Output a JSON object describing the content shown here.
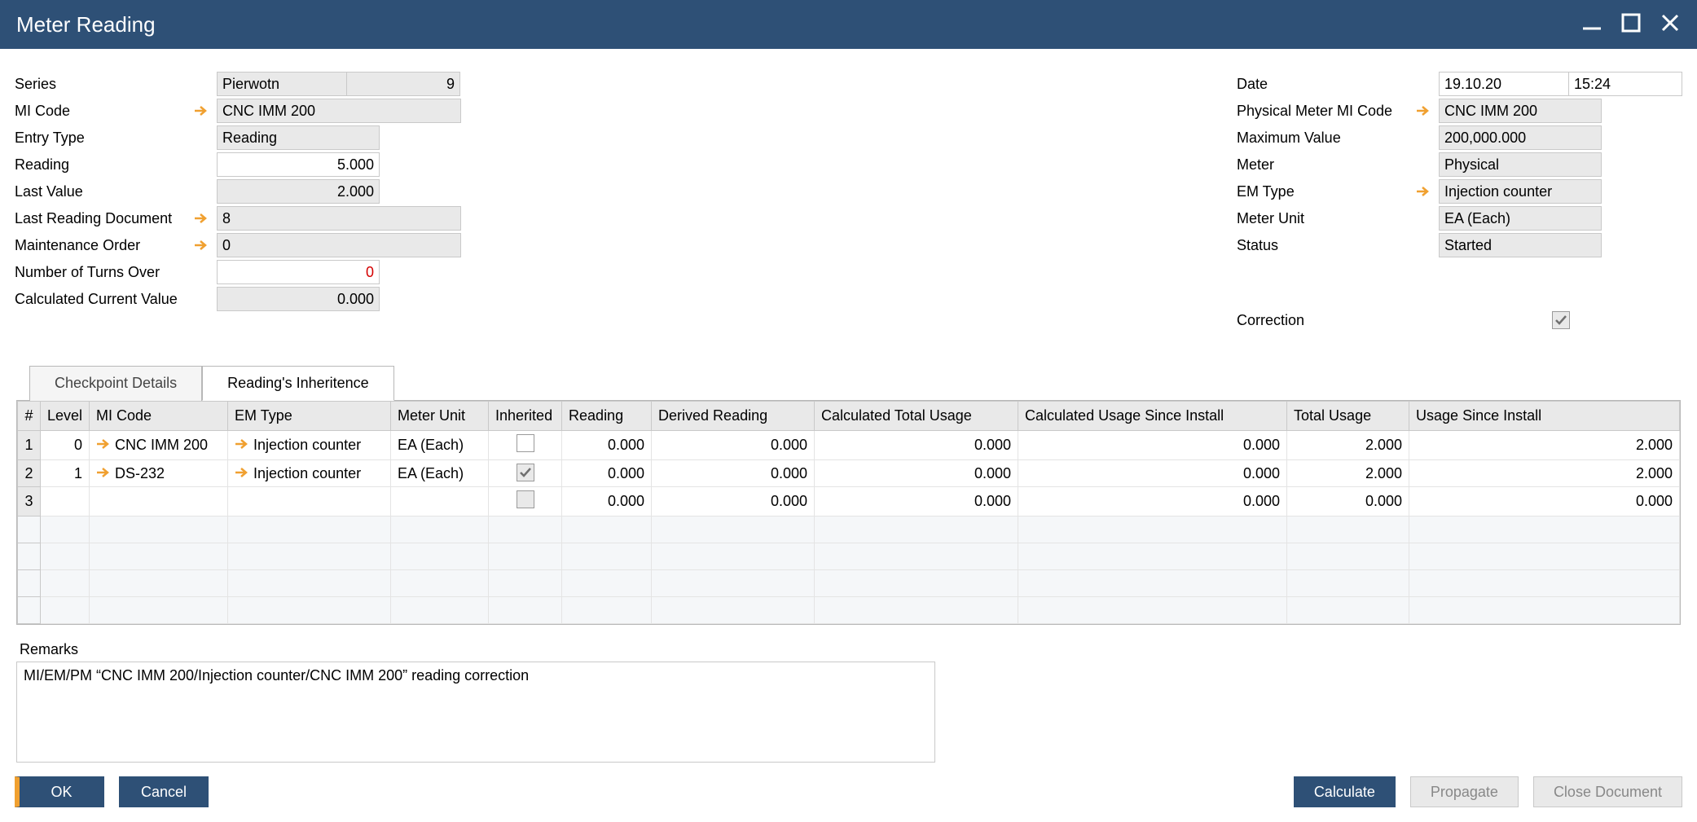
{
  "window": {
    "title": "Meter Reading"
  },
  "left": {
    "series_label": "Series",
    "series_value": "Pierwotn",
    "series_number": "9",
    "mi_code_label": "MI Code",
    "mi_code_value": "CNC IMM 200",
    "entry_type_label": "Entry Type",
    "entry_type_value": "Reading",
    "reading_label": "Reading",
    "reading_value": "5.000",
    "last_value_label": "Last Value",
    "last_value_value": "2.000",
    "last_reading_doc_label": "Last Reading Document",
    "last_reading_doc_value": "8",
    "maintenance_order_label": "Maintenance Order",
    "maintenance_order_value": "0",
    "turns_over_label": "Number of Turns Over",
    "turns_over_value": "0",
    "calc_current_label": "Calculated Current Value",
    "calc_current_value": "0.000"
  },
  "right": {
    "date_label": "Date",
    "date_value": "19.10.20",
    "time_value": "15:24",
    "phys_mi_label": "Physical Meter MI Code",
    "phys_mi_value": "CNC IMM 200",
    "max_value_label": "Maximum Value",
    "max_value_value": "200,000.000",
    "meter_label": "Meter",
    "meter_value": "Physical",
    "em_type_label": "EM Type",
    "em_type_value": "Injection counter",
    "meter_unit_label": "Meter Unit",
    "meter_unit_value": "EA (Each)",
    "status_label": "Status",
    "status_value": "Started",
    "correction_label": "Correction",
    "correction_checked": true
  },
  "tabs": {
    "checkpoint": "Checkpoint Details",
    "inheritance": "Reading's Inheritence"
  },
  "grid": {
    "columns": {
      "num": "#",
      "level": "Level",
      "mi_code": "MI Code",
      "em_type": "EM Type",
      "meter_unit": "Meter Unit",
      "inherited": "Inherited",
      "reading": "Reading",
      "derived": "Derived Reading",
      "calc_total": "Calculated Total Usage",
      "calc_since": "Calculated Usage Since Install",
      "total_usage": "Total Usage",
      "usage_since": "Usage Since Install"
    },
    "rows": [
      {
        "num": "1",
        "level": "0",
        "mi_code": "CNC IMM 200",
        "em_type": "Injection counter",
        "meter_unit": "EA (Each)",
        "inherited": false,
        "reading": "0.000",
        "derived": "0.000",
        "calc_total": "0.000",
        "calc_since": "0.000",
        "total_usage": "2.000",
        "usage_since": "2.000"
      },
      {
        "num": "2",
        "level": "1",
        "mi_code": "DS-232",
        "em_type": "Injection counter",
        "meter_unit": "EA (Each)",
        "inherited": true,
        "reading": "0.000",
        "derived": "0.000",
        "calc_total": "0.000",
        "calc_since": "0.000",
        "total_usage": "2.000",
        "usage_since": "2.000"
      },
      {
        "num": "3",
        "level": "",
        "mi_code": "",
        "em_type": "",
        "meter_unit": "",
        "inherited": false,
        "reading": "0.000",
        "derived": "0.000",
        "calc_total": "0.000",
        "calc_since": "0.000",
        "total_usage": "0.000",
        "usage_since": "0.000"
      }
    ]
  },
  "remarks": {
    "label": "Remarks",
    "text": "MI/EM/PM “CNC IMM 200/Injection counter/CNC IMM 200” reading correction"
  },
  "buttons": {
    "ok": "OK",
    "cancel": "Cancel",
    "calculate": "Calculate",
    "propagate": "Propagate",
    "close_doc": "Close Document"
  }
}
